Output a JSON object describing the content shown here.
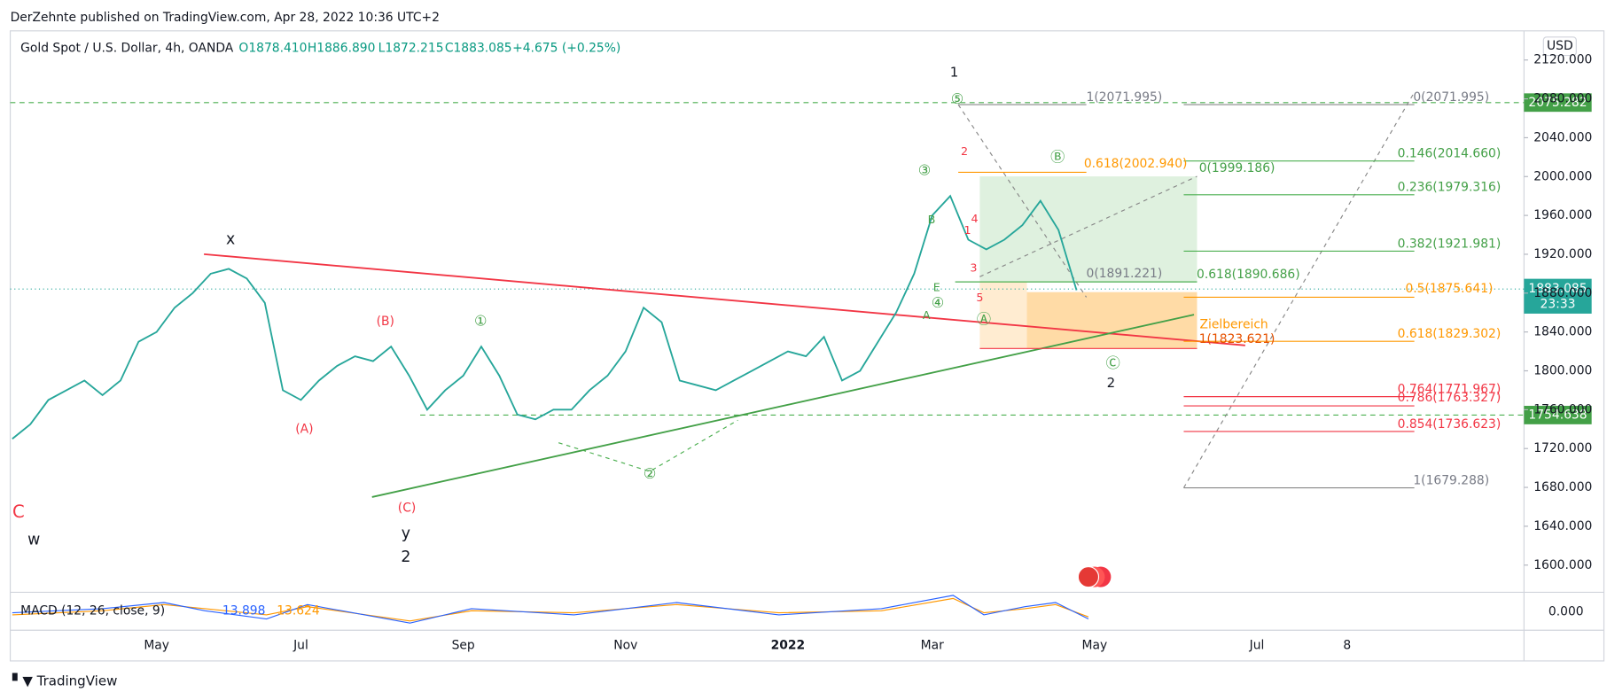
{
  "header": {
    "publisher": "DerZehnte published on TradingView.com, Apr 28, 2022 10:36 UTC+2"
  },
  "chart_data": {
    "type": "line",
    "title": "Gold Spot / U.S. Dollar, 4h, OANDA",
    "ohlc": [
      "O1878.410",
      "H1886.890",
      "L1872.215",
      "C1883.085",
      "+4.675 (+0.25%)"
    ],
    "currency": "USD",
    "color": "#26a69a",
    "categories": [
      null,
      null,
      null,
      null,
      null,
      null,
      null,
      null,
      "May",
      null,
      null,
      null,
      null,
      null,
      null,
      null,
      "Jul",
      null,
      null,
      null,
      null,
      null,
      null,
      null,
      null,
      "Sep",
      null,
      null,
      null,
      null,
      null,
      null,
      null,
      null,
      "Nov",
      null,
      null,
      null,
      null,
      null,
      null,
      null,
      null,
      "2022",
      null,
      null,
      null,
      null,
      null,
      null,
      null,
      "Mar",
      null,
      null,
      null,
      null,
      null,
      null,
      null,
      null,
      "May",
      null,
      null,
      null,
      null,
      null,
      null,
      null,
      null,
      "Jul",
      null,
      null,
      null,
      null,
      "8",
      null,
      null,
      null,
      null,
      null,
      null,
      null,
      null,
      null
    ],
    "values": [
      1730,
      1745,
      1770,
      1780,
      1790,
      1775,
      1790,
      1830,
      1840,
      1865,
      1880,
      1900,
      1905,
      1895,
      1870,
      1780,
      1770,
      1790,
      1805,
      1815,
      1810,
      1825,
      1795,
      1760,
      1780,
      1795,
      1825,
      1795,
      1755,
      1750,
      1760,
      1760,
      1780,
      1795,
      1820,
      1865,
      1850,
      1790,
      1785,
      1780,
      1790,
      1800,
      1810,
      1820,
      1815,
      1835,
      1790,
      1800,
      1830,
      1860,
      1900,
      1960,
      1980,
      1935,
      1925,
      1935,
      1950,
      1975,
      1945,
      1883,
      null,
      null,
      null,
      null,
      null,
      null,
      null,
      null,
      null,
      null,
      null,
      null,
      null,
      null,
      null,
      null,
      null,
      null,
      null,
      null,
      null,
      null,
      null,
      null
    ],
    "ylim": [
      1572,
      2150
    ],
    "yticks": [
      {
        "value": 1600,
        "label": "1600.000"
      },
      {
        "value": 1640,
        "label": "1640.000"
      },
      {
        "value": 1680,
        "label": "1680.000"
      },
      {
        "value": 1720,
        "label": "1720.000"
      },
      {
        "value": 1760,
        "label": "1760.000"
      },
      {
        "value": 1800,
        "label": "1800.000"
      },
      {
        "value": 1840,
        "label": "1840.000"
      },
      {
        "value": 1880,
        "label": "1880.000"
      },
      {
        "value": 1920,
        "label": "1920.000"
      },
      {
        "value": 1960,
        "label": "1960.000"
      },
      {
        "value": 2000,
        "label": "2000.000"
      },
      {
        "value": 2040,
        "label": "2040.000"
      },
      {
        "value": 2080,
        "label": "2080.000"
      },
      {
        "value": 2120,
        "label": "2120.000"
      }
    ],
    "price_labels": [
      "2075.282",
      "1883.085",
      "23:33",
      "1754.638"
    ],
    "annotations": [
      "1",
      "x",
      "C",
      "w",
      "y",
      "2",
      "(B)",
      "(A)",
      "(C)",
      "①",
      "②",
      "③",
      "④",
      "⑤",
      "Ⓑ",
      "Ⓐ",
      "Ⓒ",
      "2",
      "2",
      "4",
      "1",
      "3",
      "5",
      "B",
      "E",
      "A",
      "Zielbereich",
      "1(2071.995)",
      "0(2071.995)",
      "0.618(2002.940)",
      "0(1999.186)",
      "0.146(2014.660)",
      "0.236(1979.316)",
      "0.382(1921.981)",
      "0(1891.221)",
      "0.618(1890.686)",
      "0.5(1875.641)",
      "1(1823.621)",
      "0.618(1829.302)",
      "0.764(1771.967)",
      "0.786(1763.327)",
      "0.854(1736.623)",
      "1(1679.288)"
    ],
    "indicator": {
      "name": "MACD (12, 26, close, 9)",
      "values_shown": [
        "13.898",
        "13.624"
      ],
      "axis_label": "0.000"
    }
  },
  "footer": "TradingView"
}
